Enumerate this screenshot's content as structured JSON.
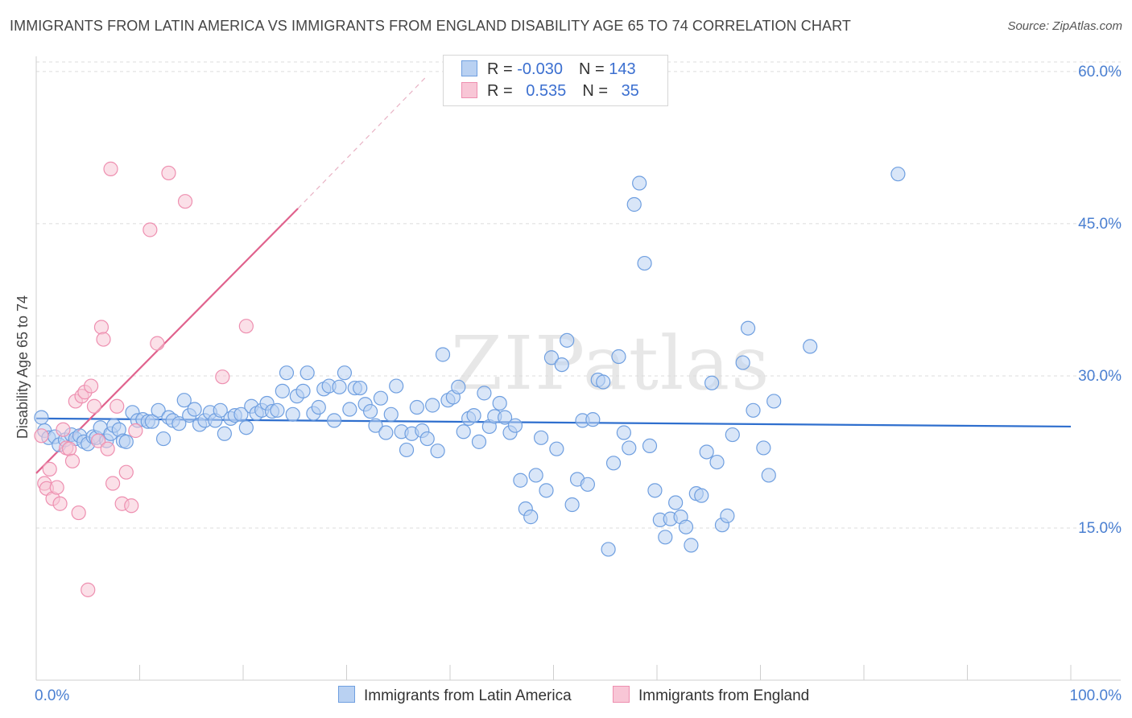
{
  "title": "IMMIGRANTS FROM LATIN AMERICA VS IMMIGRANTS FROM ENGLAND DISABILITY AGE 65 TO 74 CORRELATION CHART",
  "source": "Source: ZipAtlas.com",
  "watermark": "ZIPatlas",
  "colors": {
    "blue": "#6f9fe0",
    "blue_fill": "#b9d1f2",
    "pink": "#ee8fb0",
    "pink_fill": "#f8c6d6",
    "blue_line": "#2f6fce",
    "pink_line": "#e0628d",
    "axis_text": "#4a7fd1"
  },
  "legend": {
    "rows": [
      {
        "r_label": "R = ",
        "r_value": "-0.030",
        "n_label": "N = ",
        "n_value": "143"
      },
      {
        "r_label": "R = ",
        "r_value": "0.535",
        "n_label": "N = ",
        "n_value": "35"
      }
    ]
  },
  "chart_data": {
    "type": "scatter",
    "title": "IMMIGRANTS FROM LATIN AMERICA VS IMMIGRANTS FROM ENGLAND DISABILITY AGE 65 TO 74 CORRELATION CHART",
    "xlabel": "",
    "ylabel": "Disability Age 65 to 74",
    "xlim": [
      0,
      100
    ],
    "ylim": [
      0,
      61.5
    ],
    "x_tick_labels": [
      "0.0%",
      "100.0%"
    ],
    "y_ticks": [
      15,
      30,
      45,
      60
    ],
    "y_tick_labels": [
      "15.0%",
      "30.0%",
      "45.0%",
      "60.0%"
    ],
    "grid": true,
    "legend_position": "bottom",
    "series": [
      {
        "name": "Immigrants from Latin America",
        "color": "#6f9fe0",
        "trend": {
          "x": [
            0,
            100
          ],
          "y": [
            25.8,
            25.0
          ]
        },
        "points": [
          [
            0.5,
            25.9
          ],
          [
            0.8,
            24.6
          ],
          [
            1.2,
            23.9
          ],
          [
            1.8,
            24.0
          ],
          [
            2.2,
            23.2
          ],
          [
            2.8,
            23.7
          ],
          [
            3.4,
            24.2
          ],
          [
            3.8,
            23.8
          ],
          [
            4.2,
            24.1
          ],
          [
            4.6,
            23.5
          ],
          [
            5.0,
            23.3
          ],
          [
            5.5,
            24.0
          ],
          [
            5.8,
            23.9
          ],
          [
            6.2,
            24.9
          ],
          [
            6.8,
            23.6
          ],
          [
            7.2,
            24.3
          ],
          [
            7.5,
            25.1
          ],
          [
            8.0,
            24.7
          ],
          [
            8.4,
            23.6
          ],
          [
            8.7,
            23.5
          ],
          [
            9.3,
            26.4
          ],
          [
            9.8,
            25.6
          ],
          [
            10.3,
            25.7
          ],
          [
            10.8,
            25.5
          ],
          [
            11.2,
            25.5
          ],
          [
            11.8,
            26.6
          ],
          [
            12.3,
            23.8
          ],
          [
            12.8,
            25.9
          ],
          [
            13.2,
            25.6
          ],
          [
            13.8,
            25.3
          ],
          [
            14.3,
            27.6
          ],
          [
            14.8,
            26.1
          ],
          [
            15.3,
            26.7
          ],
          [
            15.8,
            25.2
          ],
          [
            16.3,
            25.6
          ],
          [
            16.8,
            26.4
          ],
          [
            17.3,
            25.6
          ],
          [
            17.8,
            26.6
          ],
          [
            18.2,
            24.3
          ],
          [
            18.8,
            25.8
          ],
          [
            19.2,
            26.1
          ],
          [
            19.8,
            26.2
          ],
          [
            20.3,
            24.9
          ],
          [
            20.8,
            27.0
          ],
          [
            21.3,
            26.3
          ],
          [
            21.8,
            26.6
          ],
          [
            22.3,
            27.3
          ],
          [
            22.8,
            26.5
          ],
          [
            23.3,
            26.6
          ],
          [
            23.8,
            28.5
          ],
          [
            24.2,
            30.3
          ],
          [
            24.8,
            26.2
          ],
          [
            25.2,
            28.0
          ],
          [
            25.8,
            28.5
          ],
          [
            26.2,
            30.3
          ],
          [
            26.8,
            26.3
          ],
          [
            27.3,
            26.9
          ],
          [
            27.8,
            28.7
          ],
          [
            28.3,
            29.0
          ],
          [
            28.8,
            25.6
          ],
          [
            29.3,
            28.9
          ],
          [
            29.8,
            30.3
          ],
          [
            30.3,
            26.7
          ],
          [
            30.8,
            28.8
          ],
          [
            31.3,
            28.8
          ],
          [
            31.8,
            27.2
          ],
          [
            32.3,
            26.5
          ],
          [
            32.8,
            25.1
          ],
          [
            33.3,
            27.8
          ],
          [
            33.8,
            24.4
          ],
          [
            34.3,
            26.2
          ],
          [
            34.8,
            29.0
          ],
          [
            35.3,
            24.5
          ],
          [
            35.8,
            22.7
          ],
          [
            36.3,
            24.3
          ],
          [
            36.8,
            26.9
          ],
          [
            37.3,
            24.6
          ],
          [
            37.8,
            23.8
          ],
          [
            38.3,
            27.1
          ],
          [
            38.8,
            22.6
          ],
          [
            39.3,
            32.1
          ],
          [
            39.8,
            27.6
          ],
          [
            40.3,
            27.9
          ],
          [
            40.8,
            28.9
          ],
          [
            41.3,
            24.5
          ],
          [
            41.8,
            25.8
          ],
          [
            42.3,
            26.1
          ],
          [
            42.8,
            23.5
          ],
          [
            43.3,
            28.3
          ],
          [
            43.8,
            25.0
          ],
          [
            44.3,
            26.0
          ],
          [
            44.8,
            27.3
          ],
          [
            45.3,
            25.9
          ],
          [
            45.8,
            24.4
          ],
          [
            46.3,
            25.1
          ],
          [
            46.8,
            19.7
          ],
          [
            47.3,
            16.9
          ],
          [
            47.8,
            16.1
          ],
          [
            48.3,
            20.2
          ],
          [
            48.8,
            23.9
          ],
          [
            49.3,
            18.7
          ],
          [
            49.8,
            31.8
          ],
          [
            50.3,
            22.8
          ],
          [
            50.8,
            31.1
          ],
          [
            51.3,
            33.5
          ],
          [
            51.8,
            17.3
          ],
          [
            52.3,
            19.8
          ],
          [
            52.8,
            25.6
          ],
          [
            53.3,
            19.3
          ],
          [
            53.8,
            25.7
          ],
          [
            54.3,
            29.6
          ],
          [
            54.8,
            29.4
          ],
          [
            55.3,
            12.9
          ],
          [
            55.8,
            21.4
          ],
          [
            56.3,
            31.9
          ],
          [
            56.8,
            24.4
          ],
          [
            57.3,
            22.9
          ],
          [
            57.8,
            46.9
          ],
          [
            58.3,
            49.0
          ],
          [
            58.8,
            41.1
          ],
          [
            59.3,
            23.1
          ],
          [
            59.8,
            18.7
          ],
          [
            60.3,
            15.8
          ],
          [
            60.8,
            14.1
          ],
          [
            61.3,
            15.9
          ],
          [
            61.8,
            17.5
          ],
          [
            62.3,
            16.1
          ],
          [
            62.8,
            15.1
          ],
          [
            63.3,
            13.3
          ],
          [
            63.8,
            18.4
          ],
          [
            64.3,
            18.2
          ],
          [
            64.8,
            22.5
          ],
          [
            65.3,
            29.3
          ],
          [
            65.8,
            21.5
          ],
          [
            66.3,
            15.3
          ],
          [
            66.8,
            16.2
          ],
          [
            67.3,
            24.2
          ],
          [
            68.3,
            31.3
          ],
          [
            68.8,
            34.7
          ],
          [
            69.3,
            26.6
          ],
          [
            70.3,
            22.9
          ],
          [
            70.8,
            20.2
          ],
          [
            71.3,
            27.5
          ],
          [
            74.8,
            32.9
          ],
          [
            83.3,
            49.9
          ]
        ]
      },
      {
        "name": "Immigrants from England",
        "color": "#ee8fb0",
        "trend": {
          "x": [
            0,
            25.3
          ],
          "y": [
            20.4,
            46.5
          ],
          "dash_to": [
            37.8,
            59.6
          ]
        },
        "points": [
          [
            0.5,
            24.1
          ],
          [
            0.8,
            19.4
          ],
          [
            1.0,
            18.9
          ],
          [
            1.3,
            20.8
          ],
          [
            1.6,
            17.9
          ],
          [
            2.0,
            19.0
          ],
          [
            2.3,
            17.4
          ],
          [
            2.6,
            24.7
          ],
          [
            2.9,
            22.9
          ],
          [
            3.2,
            22.8
          ],
          [
            3.5,
            21.6
          ],
          [
            3.8,
            27.5
          ],
          [
            4.1,
            16.5
          ],
          [
            4.4,
            28.0
          ],
          [
            4.7,
            28.4
          ],
          [
            5.0,
            8.9
          ],
          [
            5.3,
            29.0
          ],
          [
            5.6,
            27.0
          ],
          [
            6.0,
            23.6
          ],
          [
            6.3,
            34.8
          ],
          [
            6.5,
            33.6
          ],
          [
            6.9,
            22.8
          ],
          [
            7.2,
            50.4
          ],
          [
            7.4,
            19.4
          ],
          [
            7.8,
            27.0
          ],
          [
            8.3,
            17.4
          ],
          [
            8.7,
            20.5
          ],
          [
            9.2,
            17.2
          ],
          [
            9.6,
            24.6
          ],
          [
            11.0,
            44.4
          ],
          [
            11.7,
            33.2
          ],
          [
            12.8,
            50.0
          ],
          [
            14.4,
            47.2
          ],
          [
            18.0,
            29.9
          ],
          [
            20.3,
            34.9
          ]
        ]
      }
    ]
  },
  "bottom_legend": {
    "items": [
      {
        "label": "Immigrants from Latin America"
      },
      {
        "label": "Immigrants from England"
      }
    ]
  }
}
